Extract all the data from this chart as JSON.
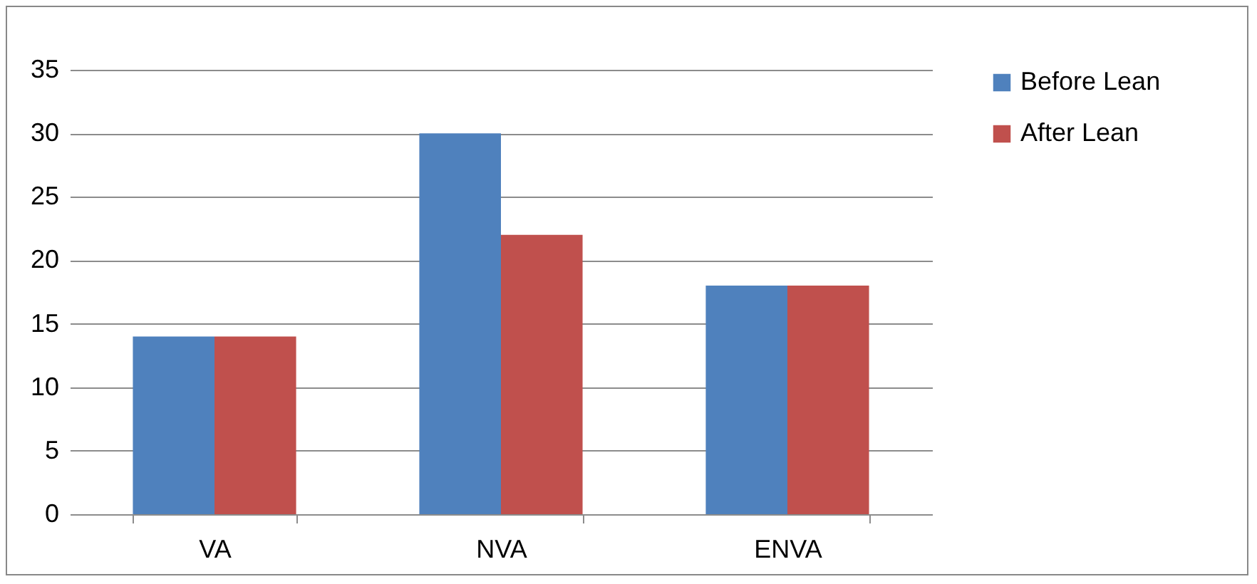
{
  "chart_data": {
    "type": "bar",
    "categories": [
      "VA",
      "NVA",
      "ENVA"
    ],
    "series": [
      {
        "name": "Before Lean",
        "color": "#4f81bd",
        "values": [
          14,
          30,
          18
        ]
      },
      {
        "name": "After Lean",
        "color": "#c0504d",
        "values": [
          14,
          22,
          18
        ]
      }
    ],
    "ylim": [
      0,
      35
    ],
    "yticks": [
      0,
      5,
      10,
      15,
      20,
      25,
      30,
      35
    ],
    "grid": "y",
    "legend": "right"
  }
}
